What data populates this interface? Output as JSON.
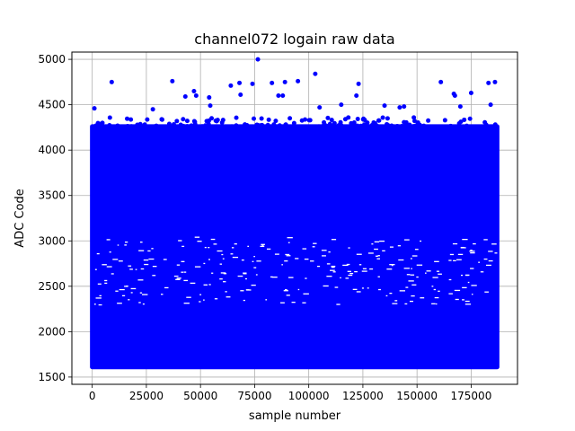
{
  "chart_data": {
    "type": "scatter",
    "title": "channel072 logain raw data",
    "xlabel": "sample number",
    "ylabel": "ADC Code",
    "xlim": [
      -9400,
      196400
    ],
    "ylim": [
      1420,
      5080
    ],
    "xticks": [
      0,
      25000,
      50000,
      75000,
      100000,
      125000,
      150000,
      175000
    ],
    "yticks": [
      1500,
      2000,
      2500,
      3000,
      3500,
      4000,
      4500,
      5000
    ],
    "grid": true,
    "marker_color": "#0000ff",
    "series": [
      {
        "dense_band": {
          "x_range": [
            0,
            187000
          ],
          "y_range": [
            1610,
            4260
          ]
        },
        "sparse_band": {
          "x_range": [
            0,
            187000
          ],
          "y_range": [
            4260,
            4360
          ]
        },
        "outliers": [
          {
            "x": 1000,
            "y": 4460
          },
          {
            "x": 9000,
            "y": 4750
          },
          {
            "x": 28000,
            "y": 4450
          },
          {
            "x": 37000,
            "y": 4760
          },
          {
            "x": 43000,
            "y": 4590
          },
          {
            "x": 47000,
            "y": 4650
          },
          {
            "x": 48000,
            "y": 4600
          },
          {
            "x": 54000,
            "y": 4580
          },
          {
            "x": 54500,
            "y": 4490
          },
          {
            "x": 64000,
            "y": 4710
          },
          {
            "x": 68000,
            "y": 4740
          },
          {
            "x": 68500,
            "y": 4610
          },
          {
            "x": 74000,
            "y": 4730
          },
          {
            "x": 76500,
            "y": 5000
          },
          {
            "x": 83000,
            "y": 4740
          },
          {
            "x": 86000,
            "y": 4600
          },
          {
            "x": 88000,
            "y": 4600
          },
          {
            "x": 89000,
            "y": 4750
          },
          {
            "x": 95000,
            "y": 4760
          },
          {
            "x": 103000,
            "y": 4840
          },
          {
            "x": 105000,
            "y": 4470
          },
          {
            "x": 115000,
            "y": 4500
          },
          {
            "x": 122000,
            "y": 4600
          },
          {
            "x": 123000,
            "y": 4730
          },
          {
            "x": 135000,
            "y": 4490
          },
          {
            "x": 142000,
            "y": 4470
          },
          {
            "x": 144000,
            "y": 4480
          },
          {
            "x": 161000,
            "y": 4750
          },
          {
            "x": 167000,
            "y": 4620
          },
          {
            "x": 167500,
            "y": 4600
          },
          {
            "x": 170000,
            "y": 4480
          },
          {
            "x": 175000,
            "y": 4630
          },
          {
            "x": 183000,
            "y": 4740
          },
          {
            "x": 184000,
            "y": 4500
          },
          {
            "x": 186000,
            "y": 4750
          }
        ]
      }
    ]
  }
}
